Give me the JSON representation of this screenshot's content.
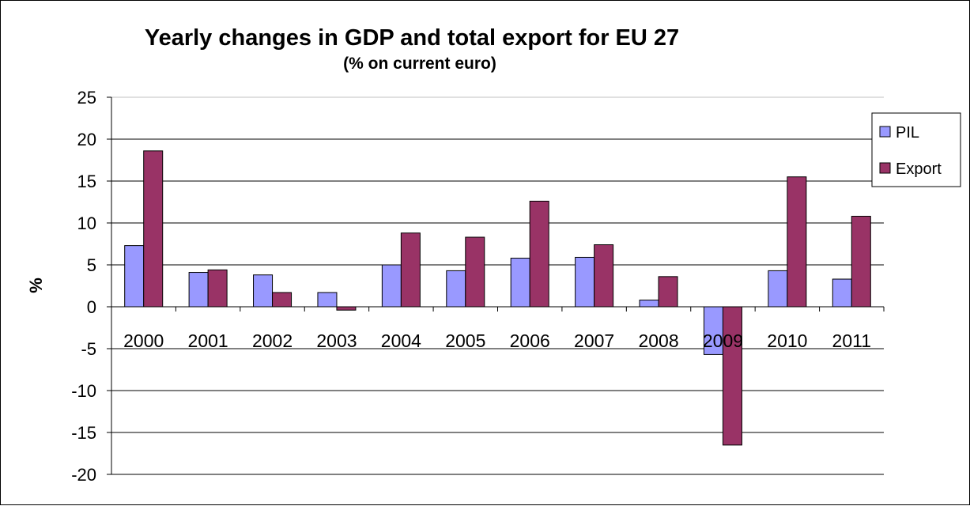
{
  "chart_data": {
    "type": "bar",
    "title": "Yearly changes in GDP and total export for EU 27",
    "subtitle": "(% on current euro)",
    "xlabel": "",
    "ylabel": "%",
    "ylim": [
      -20,
      25
    ],
    "yticks": [
      "25",
      "20",
      "15",
      "10",
      "5",
      "0",
      "-5",
      "-10",
      "-15",
      "-20"
    ],
    "yticks_values": [
      25,
      20,
      15,
      10,
      5,
      0,
      -5,
      -10,
      -15,
      -20
    ],
    "categories": [
      "2000",
      "2001",
      "2002",
      "2003",
      "2004",
      "2005",
      "2006",
      "2007",
      "2008",
      "2009",
      "2010",
      "2011"
    ],
    "series": [
      {
        "name": "PIL",
        "color": "#9999ff",
        "values": [
          7.3,
          4.1,
          3.8,
          1.7,
          5.0,
          4.3,
          5.8,
          5.9,
          0.8,
          -5.7,
          4.3,
          3.3
        ]
      },
      {
        "name": "Export",
        "color": "#993366",
        "values": [
          18.6,
          4.4,
          1.7,
          -0.4,
          8.8,
          8.3,
          12.6,
          7.4,
          3.6,
          -16.5,
          15.5,
          10.8
        ]
      }
    ],
    "grid": true,
    "legend": "right"
  }
}
